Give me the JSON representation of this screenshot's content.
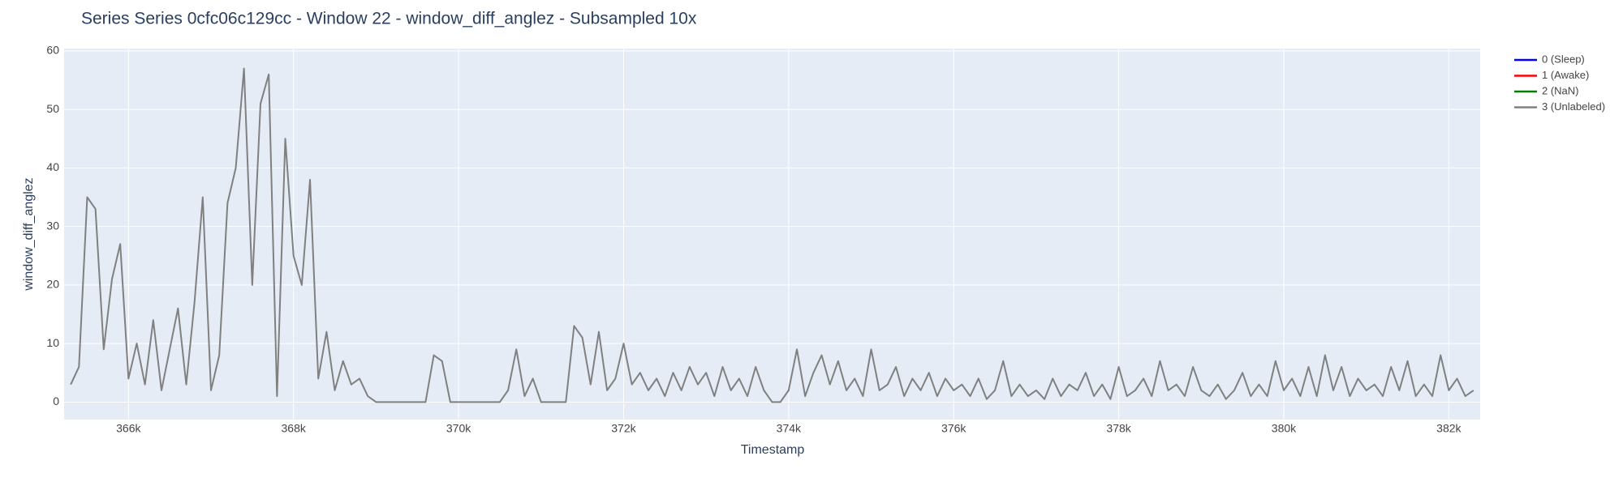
{
  "chart_data": {
    "type": "line",
    "title": "Series Series 0cfc06c129cc - Window 22 - window_diff_anglez - Subsampled 10x",
    "x_label": "Timestamp",
    "y_label": "window_diff_anglez",
    "xlim": [
      365220,
      382380
    ],
    "ylim": [
      -3,
      60.4
    ],
    "xticks": [
      {
        "value": 366000,
        "label": "366k"
      },
      {
        "value": 368000,
        "label": "368k"
      },
      {
        "value": 370000,
        "label": "370k"
      },
      {
        "value": 372000,
        "label": "372k"
      },
      {
        "value": 374000,
        "label": "374k"
      },
      {
        "value": 376000,
        "label": "376k"
      },
      {
        "value": 378000,
        "label": "378k"
      },
      {
        "value": 380000,
        "label": "380k"
      },
      {
        "value": 382000,
        "label": "382k"
      }
    ],
    "yticks": [
      0,
      10,
      20,
      30,
      40,
      50,
      60
    ],
    "grid": true,
    "legend": "right",
    "series": [
      {
        "name": "0 (Sleep)",
        "color": "blue",
        "x": [],
        "values": []
      },
      {
        "name": "1 (Awake)",
        "color": "red",
        "x": [],
        "values": []
      },
      {
        "name": "2 (NaN)",
        "color": "green",
        "x": [],
        "values": []
      },
      {
        "name": "3 (Unlabeled)",
        "color": "gray",
        "x": [
          365300,
          365400,
          365500,
          365600,
          365700,
          365800,
          365900,
          366000,
          366100,
          366200,
          366300,
          366400,
          366500,
          366600,
          366700,
          366800,
          366900,
          367000,
          367100,
          367200,
          367300,
          367400,
          367500,
          367600,
          367700,
          367800,
          367900,
          368000,
          368100,
          368200,
          368300,
          368400,
          368500,
          368600,
          368700,
          368800,
          368900,
          369000,
          369100,
          369200,
          369300,
          369400,
          369500,
          369600,
          369700,
          369800,
          369900,
          370000,
          370100,
          370200,
          370300,
          370400,
          370500,
          370600,
          370700,
          370800,
          370900,
          371000,
          371100,
          371200,
          371300,
          371400,
          371500,
          371600,
          371700,
          371800,
          371900,
          372000,
          372100,
          372200,
          372300,
          372400,
          372500,
          372600,
          372700,
          372800,
          372900,
          373000,
          373100,
          373200,
          373300,
          373400,
          373500,
          373600,
          373700,
          373800,
          373900,
          374000,
          374100,
          374200,
          374300,
          374400,
          374500,
          374600,
          374700,
          374800,
          374900,
          375000,
          375100,
          375200,
          375300,
          375400,
          375500,
          375600,
          375700,
          375800,
          375900,
          376000,
          376100,
          376200,
          376300,
          376400,
          376500,
          376600,
          376700,
          376800,
          376900,
          377000,
          377100,
          377200,
          377300,
          377400,
          377500,
          377600,
          377700,
          377800,
          377900,
          378000,
          378100,
          378200,
          378300,
          378400,
          378500,
          378600,
          378700,
          378800,
          378900,
          379000,
          379100,
          379200,
          379300,
          379400,
          379500,
          379600,
          379700,
          379800,
          379900,
          380000,
          380100,
          380200,
          380300,
          380400,
          380500,
          380600,
          380700,
          380800,
          380900,
          381000,
          381100,
          381200,
          381300,
          381400,
          381500,
          381600,
          381700,
          381800,
          381900,
          382000,
          382100,
          382200,
          382300
        ],
        "values": [
          3,
          6,
          35,
          33,
          9,
          21,
          27,
          4,
          10,
          3,
          14,
          2,
          9,
          16,
          3,
          17,
          35,
          2,
          8,
          34,
          40,
          57,
          20,
          51,
          56,
          1,
          45,
          25,
          20,
          38,
          4,
          12,
          2,
          7,
          3,
          4,
          1,
          0,
          0,
          0,
          0,
          0,
          0,
          0,
          8,
          7,
          0,
          0,
          0,
          0,
          0,
          0,
          0,
          2,
          9,
          1,
          4,
          0,
          0,
          0,
          0,
          13,
          11,
          3,
          12,
          2,
          4,
          10,
          3,
          5,
          2,
          4,
          1,
          5,
          2,
          6,
          3,
          5,
          1,
          6,
          2,
          4,
          1,
          6,
          2,
          0,
          0,
          2,
          9,
          1,
          5,
          8,
          3,
          7,
          2,
          4,
          1,
          9,
          2,
          3,
          6,
          1,
          4,
          2,
          5,
          1,
          4,
          2,
          3,
          1,
          4,
          0.5,
          2,
          7,
          1,
          3,
          1,
          2,
          0.5,
          4,
          1,
          3,
          2,
          5,
          1,
          3,
          0.5,
          6,
          1,
          2,
          4,
          1,
          7,
          2,
          3,
          1,
          6,
          2,
          1,
          3,
          0.5,
          2,
          5,
          1,
          3,
          1,
          7,
          2,
          4,
          1,
          6,
          1,
          8,
          2,
          6,
          1,
          4,
          2,
          3,
          1,
          6,
          2,
          7,
          1,
          3,
          1,
          8,
          2,
          4,
          1,
          2
        ]
      }
    ]
  }
}
